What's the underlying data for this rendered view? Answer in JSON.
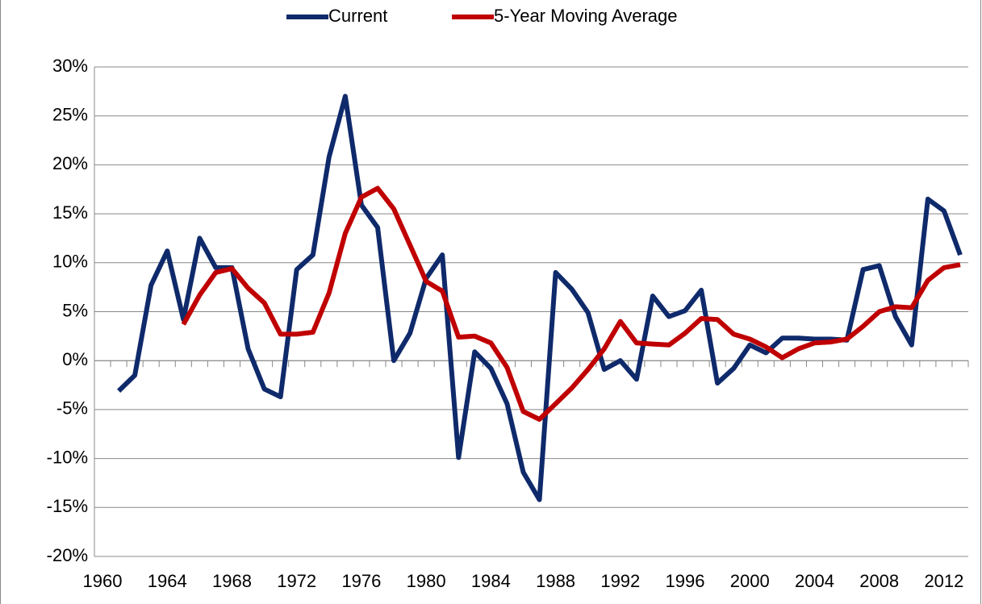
{
  "chart_data": {
    "type": "line",
    "categories": [
      "1960",
      null,
      null,
      null,
      "1964",
      null,
      null,
      null,
      "1968",
      null,
      null,
      null,
      "1972",
      null,
      null,
      null,
      "1976",
      null,
      null,
      null,
      "1980",
      null,
      null,
      null,
      "1984",
      null,
      null,
      null,
      "1988",
      null,
      null,
      null,
      "1992",
      null,
      null,
      null,
      "1996",
      null,
      null,
      null,
      "2000",
      null,
      null,
      null,
      "2004",
      null,
      null,
      null,
      "2008",
      null,
      null,
      null,
      "2012",
      null
    ],
    "series": [
      {
        "name": "Current",
        "color": "#0f2a6b",
        "values": [
          null,
          -3.1,
          -1.5,
          7.7,
          11.2,
          4.2,
          12.5,
          9.5,
          9.5,
          1.2,
          -2.9,
          -3.7,
          9.3,
          10.8,
          20.8,
          27.0,
          15.9,
          13.6,
          0.0,
          2.8,
          8.4,
          10.8,
          -9.9,
          0.9,
          -0.8,
          -4.4,
          -11.4,
          -14.2,
          9.0,
          7.3,
          4.9,
          -0.9,
          0.0,
          -1.9,
          6.6,
          4.5,
          5.1,
          7.2,
          -2.3,
          -0.8,
          1.6,
          0.8,
          2.3,
          2.3,
          2.2,
          2.2,
          2.1,
          9.3,
          9.7,
          4.5,
          1.6,
          16.5,
          15.3,
          10.8
        ]
      },
      {
        "name": "5-Year Moving Average",
        "color": "#c00000",
        "values": [
          null,
          null,
          null,
          null,
          null,
          3.7,
          6.7,
          9.0,
          9.4,
          7.4,
          5.9,
          2.7,
          2.7,
          2.9,
          6.9,
          13.0,
          16.7,
          17.6,
          15.5,
          11.8,
          8.1,
          7.1,
          2.4,
          2.5,
          1.8,
          -0.7,
          -5.2,
          -6.0,
          -4.4,
          -2.8,
          -0.9,
          1.2,
          4.0,
          1.8,
          1.7,
          1.6,
          2.8,
          4.3,
          4.2,
          2.7,
          2.2,
          1.4,
          0.3,
          1.2,
          1.8,
          1.9,
          2.2,
          3.5,
          5.0,
          5.5,
          5.4,
          8.2,
          9.5,
          9.8
        ]
      }
    ],
    "ylim": [
      -20,
      30
    ],
    "yticks": [
      {
        "value": -20,
        "label": "-20%"
      },
      {
        "value": -15,
        "label": "-15%"
      },
      {
        "value": -10,
        "label": "-10%"
      },
      {
        "value": -5,
        "label": "-5%"
      },
      {
        "value": 0,
        "label": "0%"
      },
      {
        "value": 5,
        "label": "5%"
      },
      {
        "value": 10,
        "label": "10%"
      },
      {
        "value": 15,
        "label": "15%"
      },
      {
        "value": 20,
        "label": "20%"
      },
      {
        "value": 25,
        "label": "25%"
      },
      {
        "value": 30,
        "label": "30%"
      }
    ],
    "grid": true,
    "legend": "top"
  }
}
